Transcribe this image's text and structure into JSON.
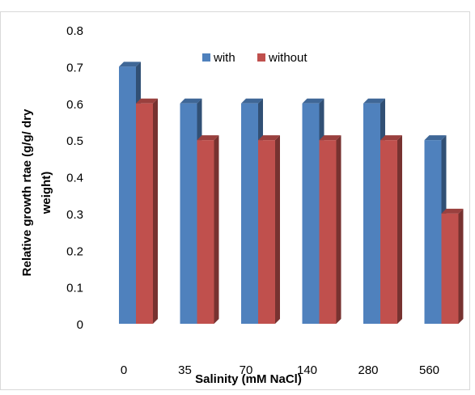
{
  "chart_data": {
    "type": "bar",
    "categories": [
      "0",
      "35",
      "70",
      "140",
      "280",
      "560"
    ],
    "series": [
      {
        "name": "with",
        "values": [
          0.7,
          0.6,
          0.6,
          0.6,
          0.6,
          0.5
        ],
        "color": "#4f81bd"
      },
      {
        "name": "without",
        "values": [
          0.6,
          0.5,
          0.5,
          0.5,
          0.5,
          0.3
        ],
        "color": "#c0504d"
      }
    ],
    "title": "",
    "xlabel": "Salinity (mM NaCl)",
    "ylabel_line1": "Relative growth rtae (g/g/ dry",
    "ylabel_line2": "weight)",
    "ylim": [
      0,
      0.8
    ],
    "yticks": [
      "0",
      "0.1",
      "0.2",
      "0.3",
      "0.4",
      "0.5",
      "0.6",
      "0.7",
      "0.8"
    ],
    "grid": false,
    "legend_position": "top-center",
    "style": "3d-bar"
  }
}
